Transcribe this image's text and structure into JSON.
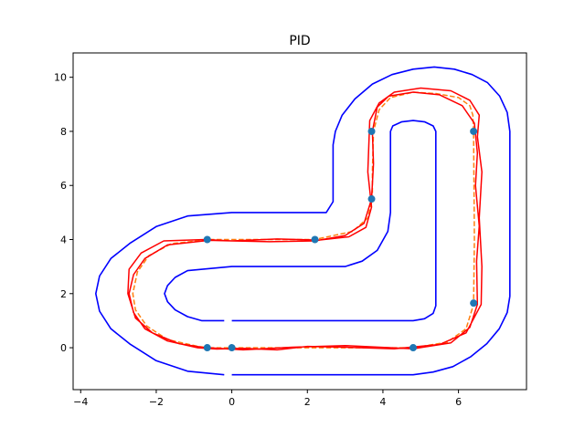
{
  "chart_data": {
    "type": "line",
    "title": "PID",
    "xlabel": "",
    "ylabel": "",
    "xlim": [
      -4.2,
      7.8
    ],
    "ylim": [
      -1.55,
      10.9
    ],
    "xticks": [
      -4,
      -2,
      0,
      2,
      4,
      6
    ],
    "yticks": [
      0,
      2,
      4,
      6,
      8,
      10
    ],
    "grid": false,
    "colors": {
      "track": "#0000ff",
      "reference": "#ff7f0e",
      "trajectory": "#ff0000",
      "waypoints": "#1f77b4"
    },
    "series": [
      {
        "kind": "track-outer-boundary",
        "color": "#0000ff",
        "x": [
          0,
          4.8,
          5.33,
          5.85,
          6.33,
          6.75,
          7.08,
          7.29,
          7.36,
          7.36,
          7.29,
          7.09,
          6.77,
          6.36,
          5.89,
          5.36,
          4.8,
          4.24,
          3.72,
          3.26,
          2.92,
          2.74,
          2.68,
          2.68,
          2.5,
          0,
          -1.17,
          -2.0,
          -2.7,
          -3.2,
          -3.5,
          -3.6,
          -3.5,
          -3.2,
          -2.7,
          -2.0,
          -1.17,
          -0.2
        ],
        "y": [
          -1,
          -1,
          -0.9,
          -0.7,
          -0.33,
          0.15,
          0.7,
          1.3,
          1.9,
          8.0,
          8.7,
          9.3,
          9.8,
          10.1,
          10.3,
          10.38,
          10.3,
          10.1,
          9.75,
          9.2,
          8.6,
          8.0,
          7.5,
          5.4,
          5.0,
          5.0,
          4.87,
          4.48,
          3.86,
          3.3,
          2.65,
          2.0,
          1.35,
          0.7,
          0.14,
          -0.48,
          -0.87,
          -1.0
        ]
      },
      {
        "kind": "track-inner-boundary",
        "color": "#0000ff",
        "x": [
          0,
          4.8,
          5.1,
          5.33,
          5.4,
          5.4,
          5.33,
          5.11,
          4.8,
          4.49,
          4.26,
          4.2,
          4.2,
          4.13,
          3.85,
          3.45,
          3.0,
          0,
          -1.17,
          -1.5,
          -1.7,
          -1.78,
          -1.7,
          -1.5,
          -1.17,
          -0.8,
          -0.2
        ],
        "y": [
          1,
          1,
          1.07,
          1.27,
          1.55,
          8.0,
          8.2,
          8.35,
          8.4,
          8.35,
          8.2,
          8.0,
          5.0,
          4.3,
          3.6,
          3.2,
          3.0,
          3.0,
          2.85,
          2.6,
          2.3,
          2.0,
          1.7,
          1.4,
          1.15,
          1.0,
          1.0
        ]
      },
      {
        "kind": "reference-path",
        "color": "#ff7f0e",
        "x": [
          -0.6,
          0,
          1.5,
          3.0,
          4.8,
          5.7,
          6.2,
          6.4,
          6.42,
          6.4,
          6.38,
          6.3,
          6.0,
          5.4,
          4.8,
          4.2,
          3.9,
          3.75,
          3.72,
          3.72,
          3.6,
          3.2,
          2.2,
          0,
          -0.6,
          -1.6,
          -2.2,
          -2.5,
          -2.62,
          -2.55,
          -2.25,
          -1.7,
          -0.9,
          -0.6
        ],
        "y": [
          0,
          0,
          0,
          0,
          0,
          0.2,
          0.7,
          1.6,
          4.0,
          8.0,
          8.6,
          8.95,
          9.25,
          9.4,
          9.45,
          9.25,
          8.8,
          8.0,
          6.5,
          5.5,
          4.8,
          4.3,
          4.0,
          4.0,
          4.0,
          3.85,
          3.4,
          2.8,
          2.0,
          1.4,
          0.8,
          0.3,
          0.05,
          0
        ]
      },
      {
        "kind": "pid-trajectory",
        "color": "#ff0000",
        "x": [
          -0.6,
          0.3,
          1.6,
          3.0,
          4.8,
          5.8,
          6.3,
          6.5,
          6.48,
          6.55,
          6.45,
          6.5,
          6.42,
          6.1,
          5.5,
          4.8,
          4.15,
          3.85,
          3.72,
          3.75,
          3.7,
          3.5,
          3.0,
          2.2,
          1.0,
          0,
          -0.6,
          -1.7,
          -2.3,
          -2.6,
          -2.72,
          -2.6,
          -2.3,
          -1.7,
          -0.9,
          -0.4,
          0.3,
          1.2,
          2.0,
          3.0,
          4.3,
          5.5,
          6.2,
          6.6,
          6.62,
          6.55,
          6.62,
          6.5,
          6.55,
          6.3,
          5.8,
          5.0,
          4.3,
          3.9,
          3.65,
          3.6,
          3.7,
          3.55,
          3.1,
          2.3,
          1.2,
          0,
          -0.7,
          -1.8,
          -2.4,
          -2.72,
          -2.75,
          -2.55,
          -2.1,
          -1.4,
          -0.6
        ],
        "y": [
          0,
          -0.08,
          0.02,
          0.08,
          -0.04,
          0.18,
          0.75,
          1.6,
          3.2,
          4.5,
          6.0,
          7.2,
          8.3,
          8.95,
          9.35,
          9.45,
          9.3,
          8.9,
          8.0,
          6.8,
          5.5,
          4.6,
          4.15,
          3.95,
          3.92,
          3.95,
          3.97,
          3.8,
          3.3,
          2.7,
          2.0,
          1.3,
          0.7,
          0.25,
          0.0,
          -0.05,
          -0.02,
          -0.08,
          0.05,
          0.02,
          -0.04,
          0.12,
          0.55,
          1.6,
          3.0,
          4.8,
          6.5,
          7.8,
          8.6,
          9.15,
          9.5,
          9.6,
          9.45,
          9.05,
          8.4,
          6.5,
          5.2,
          4.45,
          4.1,
          3.98,
          4.02,
          3.95,
          4.0,
          3.95,
          3.5,
          2.9,
          2.0,
          1.1,
          0.55,
          0.15,
          -0.02
        ]
      }
    ],
    "waypoints": {
      "color": "#1f77b4",
      "x": [
        -0.65,
        0,
        4.8,
        6.4,
        6.4,
        3.7,
        3.7,
        2.2,
        -0.65
      ],
      "y": [
        0,
        0,
        0,
        1.65,
        8.0,
        8.0,
        5.5,
        4.0,
        4.0
      ]
    }
  }
}
